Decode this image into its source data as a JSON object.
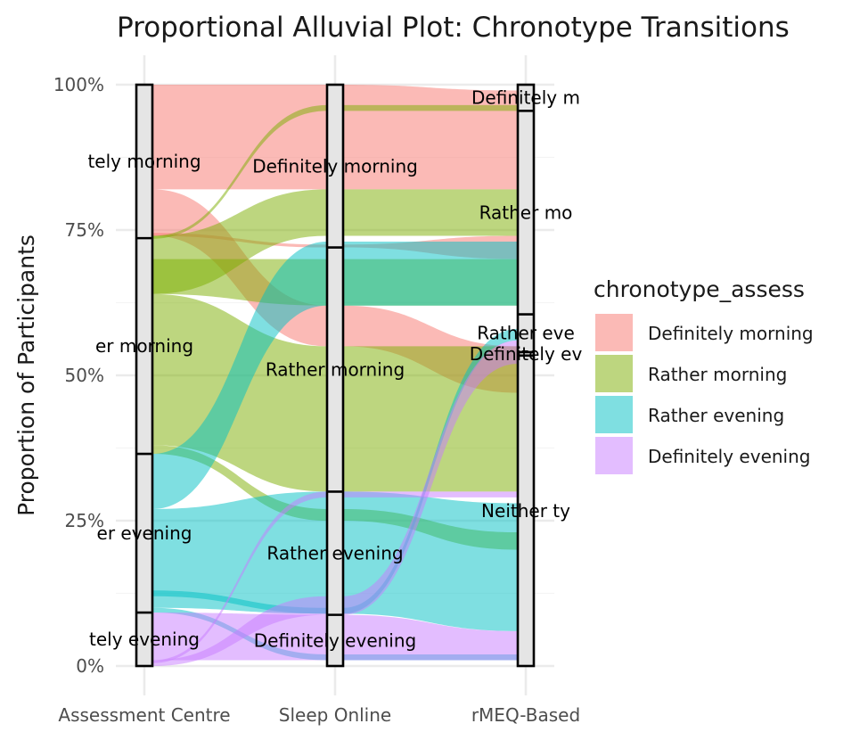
{
  "chart_data": {
    "type": "alluvial",
    "title": "Proportional Alluvial Plot: Chronotype Transitions",
    "xlabel": "",
    "ylabel": "Proportion of Participants",
    "ylim": [
      0,
      1
    ],
    "y_ticks": [
      0,
      0.25,
      0.5,
      0.75,
      1
    ],
    "y_tick_labels": [
      "0%",
      "25%",
      "50%",
      "75%",
      "100%"
    ],
    "axes": [
      "Assessment Centre",
      "Sleep Online",
      "rMEQ-Based"
    ],
    "fill_variable": "chronotype_assess",
    "legend_position": "right",
    "grid": true,
    "categories": [
      "Definitely morning",
      "Rather morning",
      "Rather evening",
      "Definitely evening"
    ],
    "colors": {
      "Definitely morning": "#F8766D",
      "Rather morning": "#7CAE00",
      "Rather evening": "#00BFC4",
      "Definitely evening": "#C77CFF"
    },
    "strata": [
      [
        {
          "label": "Definitely morning",
          "display": "tely morning",
          "ymin": 0.736,
          "ymax": 1.0
        },
        {
          "label": "Rather morning",
          "display": "er morning",
          "ymin": 0.365,
          "ymax": 0.736
        },
        {
          "label": "Rather evening",
          "display": "er evening",
          "ymin": 0.092,
          "ymax": 0.365
        },
        {
          "label": "Definitely evening",
          "display": "tely evening",
          "ymin": 0.0,
          "ymax": 0.092
        }
      ],
      [
        {
          "label": "Definitely morning",
          "display": "Definitely morning",
          "ymin": 0.72,
          "ymax": 1.0
        },
        {
          "label": "Rather morning",
          "display": "Rather morning",
          "ymin": 0.3,
          "ymax": 0.72
        },
        {
          "label": "Rather evening",
          "display": "Rather evening",
          "ymin": 0.088,
          "ymax": 0.3
        },
        {
          "label": "Definitely evening",
          "display": "Definitely evening",
          "ymin": 0.0,
          "ymax": 0.088
        }
      ],
      [
        {
          "label": "Definitely morning",
          "display": "Definitely m",
          "ymin": 0.955,
          "ymax": 1.0
        },
        {
          "label": "Rather morning",
          "display": "Rather mo",
          "ymin": 0.605,
          "ymax": 0.955
        },
        {
          "label": "Rather evening",
          "display": "Rather eve",
          "ymin": 0.54,
          "ymax": 0.605
        },
        {
          "label": "Definitely evening",
          "display": "Definitely ev",
          "ymin": 0.534,
          "ymax": 0.54
        },
        {
          "label": "Neither type",
          "display": "Neither ty",
          "ymin": 0.0,
          "ymax": 0.534
        }
      ]
    ],
    "flows": [
      {
        "fill": "Definitely morning",
        "a": [
          0.82,
          1.0
        ],
        "b": [
          0.82,
          1.0
        ],
        "c": [
          0.82,
          0.99
        ]
      },
      {
        "fill": "Definitely morning",
        "a": [
          0.74,
          0.82
        ],
        "b": [
          0.55,
          0.62
        ],
        "c": [
          0.47,
          0.55
        ]
      },
      {
        "fill": "Definitely morning",
        "a": [
          0.74,
          0.745
        ],
        "b": [
          0.72,
          0.725
        ],
        "c": [
          0.7,
          0.74
        ]
      },
      {
        "fill": "Rather morning",
        "a": [
          0.64,
          0.74
        ],
        "b": [
          0.74,
          0.82
        ],
        "c": [
          0.74,
          0.82
        ]
      },
      {
        "fill": "Rather morning",
        "a": [
          0.735,
          0.74
        ],
        "b": [
          0.955,
          0.965
        ],
        "c": [
          0.955,
          0.965
        ]
      },
      {
        "fill": "Rather morning",
        "a": [
          0.38,
          0.64
        ],
        "b": [
          0.3,
          0.55
        ],
        "c": [
          0.3,
          0.55
        ]
      },
      {
        "fill": "Rather morning",
        "a": [
          0.365,
          0.38
        ],
        "b": [
          0.25,
          0.27
        ],
        "c": [
          0.2,
          0.23
        ]
      },
      {
        "fill": "Rather morning",
        "a": [
          0.64,
          0.7
        ],
        "b": [
          0.62,
          0.7
        ],
        "c": [
          0.62,
          0.7
        ]
      },
      {
        "fill": "Rather evening",
        "a": [
          0.27,
          0.365
        ],
        "b": [
          0.62,
          0.73
        ],
        "c": [
          0.62,
          0.73
        ]
      },
      {
        "fill": "Rather evening",
        "a": [
          0.1,
          0.27
        ],
        "b": [
          0.09,
          0.3
        ],
        "c": [
          0.06,
          0.28
        ]
      },
      {
        "fill": "Rather evening",
        "a": [
          0.092,
          0.1
        ],
        "b": [
          0.01,
          0.02
        ],
        "c": [
          0.01,
          0.02
        ]
      },
      {
        "fill": "Rather evening",
        "a": [
          0.12,
          0.13
        ],
        "b": [
          0.09,
          0.1
        ],
        "c": [
          0.56,
          0.58
        ]
      },
      {
        "fill": "Definitely evening",
        "a": [
          0.01,
          0.092
        ],
        "b": [
          0.01,
          0.088
        ],
        "c": [
          0.01,
          0.06
        ]
      },
      {
        "fill": "Definitely evening",
        "a": [
          0.0,
          0.01
        ],
        "b": [
          0.088,
          0.12
        ],
        "c": [
          0.52,
          0.56
        ]
      },
      {
        "fill": "Definitely evening",
        "a": [
          0.005,
          0.01
        ],
        "b": [
          0.29,
          0.3
        ],
        "c": [
          0.29,
          0.3
        ]
      }
    ]
  }
}
